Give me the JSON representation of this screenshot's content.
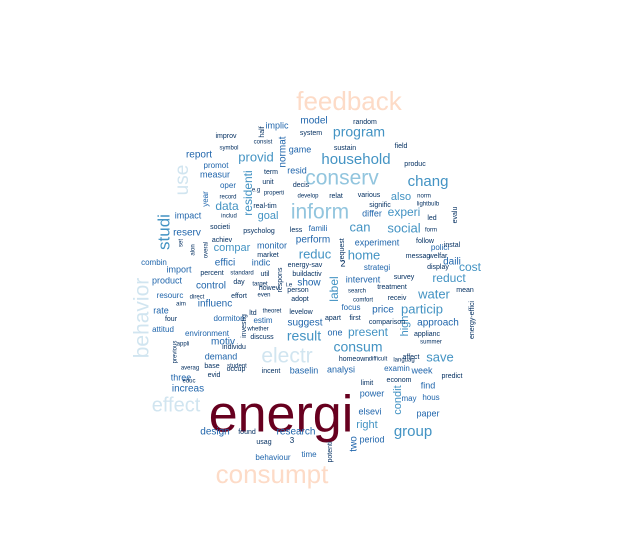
{
  "palette": {
    "darkred": "#67001f",
    "peach": "#fddbc7",
    "lightblue": "#92c5de",
    "paleblue": "#d1e5f0",
    "midblue": "#4393c3",
    "navy": "#2166ac",
    "darknavy": "#053061"
  },
  "words": [
    {
      "text": "energi",
      "color": "darkred"
    },
    {
      "text": "consumpt",
      "color": "peach"
    },
    {
      "text": "feedback",
      "color": "peach"
    },
    {
      "text": "inform",
      "color": "lightblue"
    },
    {
      "text": "conserv",
      "color": "lightblue"
    },
    {
      "text": "electr",
      "color": "paleblue"
    },
    {
      "text": "behavior",
      "color": "paleblue"
    },
    {
      "text": "effect",
      "color": "paleblue"
    },
    {
      "text": "use",
      "color": "paleblue"
    },
    {
      "text": "studi",
      "color": "midblue"
    },
    {
      "text": "household",
      "color": "midblue"
    },
    {
      "text": "chang",
      "color": "midblue"
    },
    {
      "text": "program",
      "color": "midblue"
    },
    {
      "text": "consum",
      "color": "midblue"
    },
    {
      "text": "result",
      "color": "midblue"
    },
    {
      "text": "group",
      "color": "midblue"
    },
    {
      "text": "water",
      "color": "midblue"
    },
    {
      "text": "save",
      "color": "midblue"
    },
    {
      "text": "particip",
      "color": "midblue"
    },
    {
      "text": "social",
      "color": "midblue"
    },
    {
      "text": "home",
      "color": "midblue"
    },
    {
      "text": "can",
      "color": "midblue"
    },
    {
      "text": "provid",
      "color": "midblue"
    },
    {
      "text": "reduc",
      "color": "midblue"
    },
    {
      "text": "present",
      "color": "midblue"
    },
    {
      "text": "data",
      "color": "midblue"
    },
    {
      "text": "cost",
      "color": "midblue"
    },
    {
      "text": "label",
      "color": "midblue"
    },
    {
      "text": "residenti",
      "color": "midblue"
    },
    {
      "text": "reduct",
      "color": "midblue"
    },
    {
      "text": "experi",
      "color": "midblue"
    },
    {
      "text": "right",
      "color": "midblue"
    },
    {
      "text": "condit",
      "color": "midblue"
    },
    {
      "text": "high",
      "color": "midblue"
    },
    {
      "text": "also",
      "color": "midblue"
    },
    {
      "text": "goal",
      "color": "midblue"
    },
    {
      "text": "compar",
      "color": "midblue"
    },
    {
      "text": "model",
      "color": "navy"
    },
    {
      "text": "reserv",
      "color": "navy"
    },
    {
      "text": "control",
      "color": "navy"
    },
    {
      "text": "influenc",
      "color": "navy"
    },
    {
      "text": "motiv",
      "color": "navy"
    },
    {
      "text": "design",
      "color": "navy"
    },
    {
      "text": "research",
      "color": "navy"
    },
    {
      "text": "perform",
      "color": "navy"
    },
    {
      "text": "show",
      "color": "navy"
    },
    {
      "text": "effici",
      "color": "navy"
    },
    {
      "text": "daili",
      "color": "navy"
    },
    {
      "text": "approach",
      "color": "navy"
    },
    {
      "text": "increas",
      "color": "navy"
    },
    {
      "text": "suggest",
      "color": "navy"
    },
    {
      "text": "report",
      "color": "navy"
    },
    {
      "text": "analysi",
      "color": "navy"
    },
    {
      "text": "two",
      "color": "navy"
    },
    {
      "text": "impact",
      "color": "navy"
    },
    {
      "text": "price",
      "color": "navy"
    },
    {
      "text": "normat",
      "color": "navy"
    },
    {
      "text": "implic",
      "color": "navy"
    },
    {
      "text": "game",
      "color": "navy"
    },
    {
      "text": "resid",
      "color": "navy"
    },
    {
      "text": "measur",
      "color": "navy"
    },
    {
      "text": "monitor",
      "color": "navy"
    },
    {
      "text": "import",
      "color": "navy"
    },
    {
      "text": "rate",
      "color": "navy"
    },
    {
      "text": "product",
      "color": "navy"
    },
    {
      "text": "indic",
      "color": "navy"
    },
    {
      "text": "intervent",
      "color": "navy"
    },
    {
      "text": "experiment",
      "color": "navy"
    },
    {
      "text": "differ",
      "color": "navy"
    },
    {
      "text": "paper",
      "color": "navy"
    },
    {
      "text": "find",
      "color": "navy"
    },
    {
      "text": "baselin",
      "color": "navy"
    },
    {
      "text": "demand",
      "color": "navy"
    },
    {
      "text": "three",
      "color": "navy"
    },
    {
      "text": "week",
      "color": "navy"
    },
    {
      "text": "period",
      "color": "navy"
    },
    {
      "text": "elsevi",
      "color": "navy"
    },
    {
      "text": "power",
      "color": "navy"
    },
    {
      "text": "combin",
      "color": "navy"
    },
    {
      "text": "resourc",
      "color": "navy"
    },
    {
      "text": "attitud",
      "color": "navy"
    },
    {
      "text": "environment",
      "color": "navy"
    },
    {
      "text": "dormitori",
      "color": "navy"
    },
    {
      "text": "polici",
      "color": "navy"
    },
    {
      "text": "estim",
      "color": "navy"
    },
    {
      "text": "famili",
      "color": "navy"
    },
    {
      "text": "strategi",
      "color": "navy"
    },
    {
      "text": "one",
      "color": "navy"
    },
    {
      "text": "examin",
      "color": "navy"
    },
    {
      "text": "may",
      "color": "navy"
    },
    {
      "text": "hous",
      "color": "navy"
    },
    {
      "text": "behaviour",
      "color": "navy"
    },
    {
      "text": "time",
      "color": "navy"
    },
    {
      "text": "focus",
      "color": "navy"
    },
    {
      "text": "year",
      "color": "navy"
    },
    {
      "text": "oper",
      "color": "navy"
    },
    {
      "text": "promot",
      "color": "navy"
    },
    {
      "text": "improv",
      "color": "darknavy"
    },
    {
      "text": "system",
      "color": "darknavy"
    },
    {
      "text": "sustain",
      "color": "darknavy"
    },
    {
      "text": "field",
      "color": "darknavy"
    },
    {
      "text": "produc",
      "color": "darknavy"
    },
    {
      "text": "random",
      "color": "darknavy"
    },
    {
      "text": "half",
      "color": "darknavy"
    },
    {
      "text": "term",
      "color": "darknavy"
    },
    {
      "text": "unit",
      "color": "darknavy"
    },
    {
      "text": "decis",
      "color": "darknavy"
    },
    {
      "text": "relat",
      "color": "darknavy"
    },
    {
      "text": "various",
      "color": "darknavy"
    },
    {
      "text": "signific",
      "color": "darknavy"
    },
    {
      "text": "led",
      "color": "darknavy"
    },
    {
      "text": "evalu",
      "color": "darknavy"
    },
    {
      "text": "achiev",
      "color": "darknavy"
    },
    {
      "text": "societi",
      "color": "darknavy"
    },
    {
      "text": "real-tim",
      "color": "darknavy"
    },
    {
      "text": "psycholog",
      "color": "darknavy"
    },
    {
      "text": "less",
      "color": "darknavy"
    },
    {
      "text": "instal",
      "color": "darknavy"
    },
    {
      "text": "follow",
      "color": "darknavy"
    },
    {
      "text": "welfar",
      "color": "darknavy"
    },
    {
      "text": "market",
      "color": "darknavy"
    },
    {
      "text": "energy-sav",
      "color": "darknavy"
    },
    {
      "text": "buildactiv",
      "color": "darknavy"
    },
    {
      "text": "util",
      "color": "darknavy"
    },
    {
      "text": "day",
      "color": "darknavy"
    },
    {
      "text": "percent",
      "color": "darknavy"
    },
    {
      "text": "messag",
      "color": "darknavy"
    },
    {
      "text": "display",
      "color": "darknavy"
    },
    {
      "text": "survey",
      "color": "darknavy"
    },
    {
      "text": "receiv",
      "color": "darknavy"
    },
    {
      "text": "mean",
      "color": "darknavy"
    },
    {
      "text": "energy-effici",
      "color": "darknavy"
    },
    {
      "text": "howev",
      "color": "darknavy"
    },
    {
      "text": "effort",
      "color": "darknavy"
    },
    {
      "text": "adopt",
      "color": "darknavy"
    },
    {
      "text": "person",
      "color": "darknavy"
    },
    {
      "text": "levelow",
      "color": "darknavy"
    },
    {
      "text": "discuss",
      "color": "darknavy"
    },
    {
      "text": "individu",
      "color": "darknavy"
    },
    {
      "text": "occup",
      "color": "darknavy"
    },
    {
      "text": "base",
      "color": "darknavy"
    },
    {
      "text": "evid",
      "color": "darknavy"
    },
    {
      "text": "incent",
      "color": "darknavy"
    },
    {
      "text": "homeown",
      "color": "darknavy"
    },
    {
      "text": "limit",
      "color": "darknavy"
    },
    {
      "text": "econom",
      "color": "darknavy"
    },
    {
      "text": "treatment",
      "color": "darknavy"
    },
    {
      "text": "comparison",
      "color": "darknavy"
    },
    {
      "text": "applianc",
      "color": "darknavy"
    },
    {
      "text": "affect",
      "color": "darknavy"
    },
    {
      "text": "predict",
      "color": "darknavy"
    },
    {
      "text": "apart",
      "color": "darknavy"
    },
    {
      "text": "first",
      "color": "darknavy"
    },
    {
      "text": "four",
      "color": "darknavy"
    },
    {
      "text": "ltd",
      "color": "darknavy"
    },
    {
      "text": "found",
      "color": "darknavy"
    },
    {
      "text": "usag",
      "color": "darknavy"
    },
    {
      "text": "potenti",
      "color": "darknavy"
    },
    {
      "text": "investig",
      "color": "darknavy"
    },
    {
      "text": "respons",
      "color": "darknavy"
    },
    {
      "text": "request",
      "color": "darknavy"
    },
    {
      "text": "alon",
      "color": "darknavy"
    },
    {
      "text": "set",
      "color": "darknavy"
    },
    {
      "text": "overal",
      "color": "darknavy"
    },
    {
      "text": "previous",
      "color": "darknavy"
    },
    {
      "text": "includ",
      "color": "darknavy"
    },
    {
      "text": "record",
      "color": "darknavy"
    },
    {
      "text": "symbol",
      "color": "darknavy"
    },
    {
      "text": "consist",
      "color": "darknavy"
    },
    {
      "text": "aim",
      "color": "darknavy"
    },
    {
      "text": "direct",
      "color": "darknavy"
    },
    {
      "text": "standard",
      "color": "darknavy"
    },
    {
      "text": "target",
      "color": "darknavy"
    },
    {
      "text": "even",
      "color": "darknavy"
    },
    {
      "text": "theoret",
      "color": "darknavy"
    },
    {
      "text": "whether",
      "color": "darknavy"
    },
    {
      "text": "student",
      "color": "darknavy"
    },
    {
      "text": "summer",
      "color": "darknavy"
    },
    {
      "text": "difficult",
      "color": "darknavy"
    },
    {
      "text": "search",
      "color": "darknavy"
    },
    {
      "text": "comfort",
      "color": "darknavy"
    },
    {
      "text": "lightbulb",
      "color": "darknavy"
    },
    {
      "text": "norm",
      "color": "darknavy"
    },
    {
      "text": "form",
      "color": "darknavy"
    },
    {
      "text": "languag",
      "color": "darknavy"
    },
    {
      "text": "develop",
      "color": "darknavy"
    },
    {
      "text": "properti",
      "color": "darknavy"
    },
    {
      "text": "e.g",
      "color": "darknavy"
    },
    {
      "text": "averag",
      "color": "darknavy"
    },
    {
      "text": "educ",
      "color": "darknavy"
    },
    {
      "text": "appli",
      "color": "darknavy"
    },
    {
      "text": "i.e",
      "color": "darknavy"
    },
    {
      "text": "2",
      "color": "darknavy"
    },
    {
      "text": "3",
      "color": "darknavy"
    }
  ]
}
